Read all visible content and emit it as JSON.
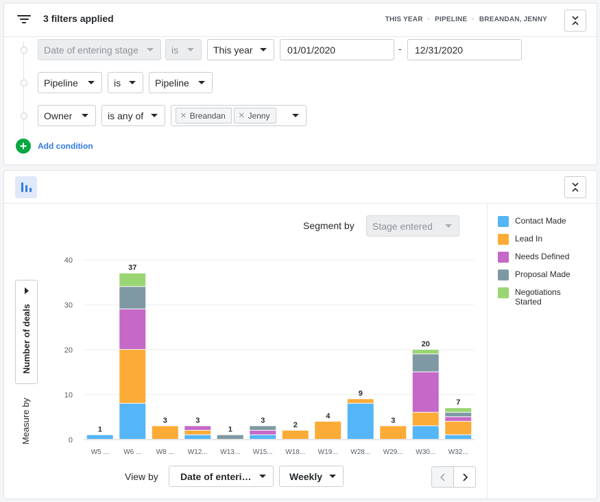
{
  "filters": {
    "title": "3 filters applied",
    "summary": [
      "THIS YEAR",
      "PIPELINE",
      "BREANDAN, JENNY"
    ],
    "conditions": [
      {
        "field": "Date of entering stage",
        "operator": "is",
        "value": "This year",
        "from": "01/01/2020",
        "to": "12/31/2020"
      },
      {
        "field": "Pipeline",
        "operator": "is",
        "value": "Pipeline"
      },
      {
        "field": "Owner",
        "operator": "is any of",
        "tags": [
          "Breandan",
          "Jenny"
        ]
      }
    ],
    "range_separator": "-",
    "add_condition_label": "Add condition"
  },
  "report": {
    "segment_by_label": "Segment by",
    "segment_by_value": "Stage entered",
    "measure_by_label": "Measure by",
    "measure_value": "Number of deals",
    "view_by_label": "View by",
    "view_by_value": "Date of enteri…",
    "interval_value": "Weekly",
    "colors": {
      "contact_made": "#54b6f6",
      "lead_in": "#fdab37",
      "needs_defined": "#c568c7",
      "proposal_made": "#7f99a3",
      "negotiations_started": "#99d673"
    }
  },
  "chart_data": {
    "type": "bar",
    "stacked": true,
    "categories": [
      "W5 ...",
      "W6 ...",
      "W8 ...",
      "W12...",
      "W13...",
      "W15...",
      "W18...",
      "W19...",
      "W28...",
      "W29...",
      "W30...",
      "W32..."
    ],
    "totals": [
      1,
      37,
      3,
      3,
      1,
      3,
      2,
      4,
      9,
      3,
      20,
      7
    ],
    "series": [
      {
        "name": "Contact Made",
        "color": "#54b6f6",
        "values": [
          1,
          8,
          0,
          1,
          0,
          1,
          0,
          0,
          8,
          0,
          3,
          1
        ]
      },
      {
        "name": "Lead In",
        "color": "#fdab37",
        "values": [
          0,
          12,
          3,
          1,
          0,
          0,
          2,
          4,
          1,
          3,
          3,
          3
        ]
      },
      {
        "name": "Needs Defined",
        "color": "#c568c7",
        "values": [
          0,
          9,
          0,
          1,
          0,
          1,
          0,
          0,
          0,
          0,
          9,
          1
        ]
      },
      {
        "name": "Proposal Made",
        "color": "#7f99a3",
        "values": [
          0,
          5,
          0,
          0,
          1,
          1,
          0,
          0,
          0,
          0,
          4,
          1
        ]
      },
      {
        "name": "Negotiations Started",
        "color": "#99d673",
        "values": [
          0,
          3,
          0,
          0,
          0,
          0,
          0,
          0,
          0,
          0,
          1,
          1
        ]
      }
    ],
    "yticks": [
      0,
      10,
      20,
      30,
      40
    ],
    "ylim": [
      0,
      40
    ],
    "grid": true,
    "legend_position": "right"
  }
}
